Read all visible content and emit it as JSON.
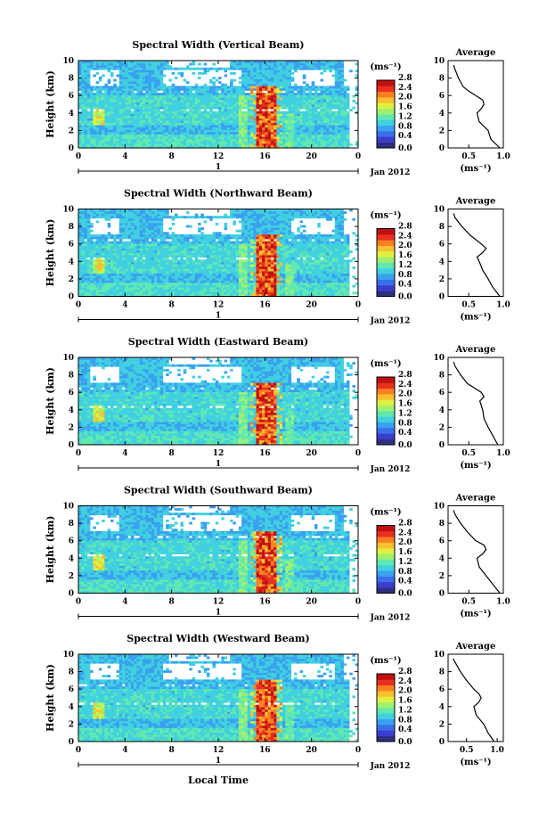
{
  "x_label": "Local Time",
  "colorbar_unit": "(ms⁻¹)",
  "colorbar_ticks": [
    "0.0",
    "0.4",
    "0.8",
    "1.2",
    "1.6",
    "2.0",
    "2.4",
    "2.8"
  ],
  "colorscale": [
    "#2f2f7f",
    "#3c3ccf",
    "#3a6fe8",
    "#3aa0f0",
    "#40d0e0",
    "#60e8b0",
    "#a0f070",
    "#e0f040",
    "#f8c030",
    "#f88020",
    "#e83020",
    "#c01010"
  ],
  "date_label": "Jan 2012",
  "day_label": "1",
  "avg_title": "Average",
  "avg_unit": "(ms⁻¹)",
  "chart_data": [
    {
      "type": "heatmap",
      "title": "Spectral Width (Vertical Beam)",
      "ylabel": "Height (km)",
      "xlabel": "Local Time",
      "x_ticks": [
        "0",
        "4",
        "8",
        "12",
        "16",
        "20",
        "0"
      ],
      "y_ticks": [
        "0",
        "2",
        "4",
        "6",
        "8",
        "10"
      ],
      "xlim": [
        0,
        24
      ],
      "ylim": [
        0,
        10
      ],
      "zlim": [
        0.0,
        2.8
      ],
      "avg_profile": {
        "xlabel": "(ms⁻¹)",
        "x_ticks": [
          "0.5",
          "1.0"
        ],
        "xlim": [
          0.2,
          1.0
        ],
        "height": [
          0,
          1,
          2,
          3,
          4,
          4.5,
          5,
          5.5,
          6,
          6.5,
          7,
          8,
          9,
          9.5
        ],
        "width": [
          0.95,
          0.82,
          0.78,
          0.65,
          0.62,
          0.68,
          0.72,
          0.7,
          0.6,
          0.5,
          0.42,
          0.35,
          0.3,
          0.28
        ]
      }
    },
    {
      "type": "heatmap",
      "title": "Spectral Width (Northward Beam)",
      "ylabel": "Height (km)",
      "xlabel": "Local Time",
      "x_ticks": [
        "0",
        "4",
        "8",
        "12",
        "16",
        "20",
        "0"
      ],
      "y_ticks": [
        "0",
        "2",
        "4",
        "6",
        "8",
        "10"
      ],
      "xlim": [
        0,
        24
      ],
      "ylim": [
        0,
        10
      ],
      "zlim": [
        0.0,
        2.8
      ],
      "avg_profile": {
        "xlabel": "(ms⁻¹)",
        "x_ticks": [
          "0.5",
          "1.0"
        ],
        "xlim": [
          0.2,
          1.0
        ],
        "height": [
          0,
          1,
          2,
          3,
          4,
          4.5,
          5,
          5.5,
          6,
          7,
          8,
          9,
          9.5
        ],
        "width": [
          0.95,
          0.85,
          0.78,
          0.7,
          0.65,
          0.62,
          0.7,
          0.75,
          0.68,
          0.52,
          0.4,
          0.3,
          0.28
        ]
      }
    },
    {
      "type": "heatmap",
      "title": "Spectral Width (Eastward Beam)",
      "ylabel": "Height (km)",
      "xlabel": "Local Time",
      "x_ticks": [
        "0",
        "4",
        "8",
        "12",
        "16",
        "20",
        "0"
      ],
      "y_ticks": [
        "0",
        "2",
        "4",
        "6",
        "8",
        "10"
      ],
      "xlim": [
        0,
        24
      ],
      "ylim": [
        0,
        10
      ],
      "zlim": [
        0.0,
        2.8
      ],
      "avg_profile": {
        "xlabel": "(ms⁻¹)",
        "x_ticks": [
          "0.5",
          "1.0"
        ],
        "xlim": [
          0.2,
          1.0
        ],
        "height": [
          0,
          1,
          2,
          3,
          4,
          5,
          5.5,
          6,
          6.5,
          7,
          8,
          9,
          9.5
        ],
        "width": [
          0.92,
          0.85,
          0.78,
          0.72,
          0.7,
          0.66,
          0.72,
          0.68,
          0.58,
          0.48,
          0.38,
          0.3,
          0.28
        ]
      }
    },
    {
      "type": "heatmap",
      "title": "Spectral Width (Southward Beam)",
      "ylabel": "Height (km)",
      "xlabel": "Local Time",
      "x_ticks": [
        "0",
        "4",
        "8",
        "12",
        "16",
        "20",
        "0"
      ],
      "y_ticks": [
        "0",
        "2",
        "4",
        "6",
        "8",
        "10"
      ],
      "xlim": [
        0,
        24
      ],
      "ylim": [
        0,
        10
      ],
      "zlim": [
        0.0,
        2.8
      ],
      "avg_profile": {
        "xlabel": "(ms⁻¹)",
        "x_ticks": [
          "0.5",
          "1.0"
        ],
        "xlim": [
          0.2,
          1.0
        ],
        "height": [
          0,
          1,
          2,
          3,
          4,
          4.5,
          5,
          5.5,
          6,
          7,
          8,
          9,
          9.5
        ],
        "width": [
          0.95,
          0.85,
          0.75,
          0.65,
          0.62,
          0.7,
          0.75,
          0.72,
          0.6,
          0.48,
          0.38,
          0.3,
          0.28
        ]
      }
    },
    {
      "type": "heatmap",
      "title": "Spectral Width (Westward Beam)",
      "ylabel": "Height (km)",
      "xlabel": "Local Time",
      "x_ticks": [
        "0",
        "4",
        "8",
        "12",
        "16",
        "20",
        "0"
      ],
      "y_ticks": [
        "0",
        "2",
        "4",
        "6",
        "8",
        "10"
      ],
      "xlim": [
        0,
        24
      ],
      "ylim": [
        0,
        10
      ],
      "zlim": [
        0.0,
        2.8
      ],
      "avg_profile": {
        "xlabel": "(ms⁻¹)",
        "x_ticks": [
          "0.5",
          "1.0"
        ],
        "xlim": [
          0.2,
          1.1
        ],
        "height": [
          0,
          1,
          2,
          3,
          4,
          4.5,
          5,
          5.5,
          6,
          7,
          8,
          9,
          9.5
        ],
        "width": [
          0.95,
          0.85,
          0.78,
          0.66,
          0.62,
          0.7,
          0.74,
          0.7,
          0.62,
          0.5,
          0.4,
          0.32,
          0.28
        ]
      }
    }
  ]
}
